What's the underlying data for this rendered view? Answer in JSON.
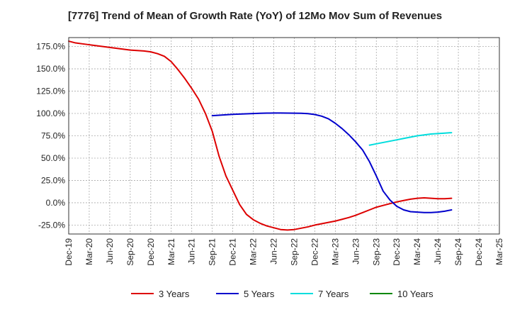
{
  "chart_data": {
    "type": "line",
    "title": "[7776]  Trend of Mean of Growth Rate (YoY) of 12Mo Mov Sum of Revenues",
    "xlabel": "",
    "ylabel": "",
    "x_ticks": [
      "Dec-19",
      "Mar-20",
      "Jun-20",
      "Sep-20",
      "Dec-20",
      "Mar-21",
      "Jun-21",
      "Sep-21",
      "Dec-21",
      "Mar-22",
      "Jun-22",
      "Sep-22",
      "Dec-22",
      "Mar-23",
      "Jun-23",
      "Sep-23",
      "Dec-23",
      "Mar-24",
      "Jun-24",
      "Sep-24",
      "Dec-24",
      "Mar-25"
    ],
    "y_ticks": [
      175,
      150,
      125,
      100,
      75,
      50,
      25,
      0,
      -25
    ],
    "y_tick_labels": [
      "175.0%",
      "150.0%",
      "125.0%",
      "100.0%",
      "75.0%",
      "50.0%",
      "25.0%",
      "0.0%",
      "-25.0%"
    ],
    "ylim": [
      -35,
      185
    ],
    "grid": true,
    "legend_position": "bottom",
    "series": [
      {
        "name": "3 Years",
        "color": "#dd0000",
        "points": [
          [
            0,
            181
          ],
          [
            1,
            179
          ],
          [
            2,
            178
          ],
          [
            3,
            177
          ],
          [
            4,
            176
          ],
          [
            5,
            175
          ],
          [
            6,
            174
          ],
          [
            7,
            173
          ],
          [
            8,
            172
          ],
          [
            9,
            171
          ],
          [
            10,
            170.5
          ],
          [
            11,
            170
          ],
          [
            12,
            169
          ],
          [
            13,
            167
          ],
          [
            14,
            164
          ],
          [
            15,
            158
          ],
          [
            16,
            149
          ],
          [
            17,
            139
          ],
          [
            18,
            128
          ],
          [
            19,
            116
          ],
          [
            20,
            100
          ],
          [
            21,
            80
          ],
          [
            22,
            52
          ],
          [
            23,
            30
          ],
          [
            24,
            14
          ],
          [
            25,
            -2
          ],
          [
            26,
            -13
          ],
          [
            27,
            -19
          ],
          [
            28,
            -23
          ],
          [
            29,
            -26
          ],
          [
            30,
            -28
          ],
          [
            31,
            -30
          ],
          [
            32,
            -30.5
          ],
          [
            33,
            -30
          ],
          [
            34,
            -28.5
          ],
          [
            35,
            -27
          ],
          [
            36,
            -25
          ],
          [
            37,
            -23.5
          ],
          [
            38,
            -22
          ],
          [
            39,
            -20.5
          ],
          [
            40,
            -18.5
          ],
          [
            41,
            -16.5
          ],
          [
            42,
            -14
          ],
          [
            43,
            -11
          ],
          [
            44,
            -8
          ],
          [
            45,
            -5
          ],
          [
            46,
            -3
          ],
          [
            47,
            -1
          ],
          [
            48,
            1
          ],
          [
            49,
            2.5
          ],
          [
            50,
            4
          ],
          [
            51,
            5
          ],
          [
            52,
            5.5
          ],
          [
            53,
            5
          ],
          [
            54,
            4.5
          ],
          [
            55,
            4.5
          ],
          [
            56,
            5
          ]
        ]
      },
      {
        "name": "5 Years",
        "color": "#0000cc",
        "points": [
          [
            21,
            97.5
          ],
          [
            22,
            98
          ],
          [
            23,
            98.5
          ],
          [
            24,
            99
          ],
          [
            25,
            99.3
          ],
          [
            26,
            99.6
          ],
          [
            27,
            99.9
          ],
          [
            28,
            100.2
          ],
          [
            29,
            100.4
          ],
          [
            30,
            100.5
          ],
          [
            31,
            100.5
          ],
          [
            32,
            100.4
          ],
          [
            33,
            100.3
          ],
          [
            34,
            100.2
          ],
          [
            35,
            99.8
          ],
          [
            36,
            98.8
          ],
          [
            37,
            97
          ],
          [
            38,
            94
          ],
          [
            39,
            89
          ],
          [
            40,
            83
          ],
          [
            41,
            76
          ],
          [
            42,
            68
          ],
          [
            43,
            59
          ],
          [
            44,
            46
          ],
          [
            45,
            30
          ],
          [
            46,
            13
          ],
          [
            47,
            3
          ],
          [
            48,
            -4
          ],
          [
            49,
            -8
          ],
          [
            50,
            -10
          ],
          [
            51,
            -10.5
          ],
          [
            52,
            -11
          ],
          [
            53,
            -11
          ],
          [
            54,
            -10.5
          ],
          [
            55,
            -9.5
          ],
          [
            56,
            -8
          ]
        ]
      },
      {
        "name": "7 Years",
        "color": "#00dddd",
        "points": [
          [
            44,
            64.5
          ],
          [
            45,
            66
          ],
          [
            46,
            67.5
          ],
          [
            47,
            69
          ],
          [
            48,
            70.5
          ],
          [
            49,
            72
          ],
          [
            50,
            73.5
          ],
          [
            51,
            75
          ],
          [
            52,
            76
          ],
          [
            53,
            77
          ],
          [
            54,
            77.5
          ],
          [
            55,
            78
          ],
          [
            56,
            78.5
          ]
        ]
      },
      {
        "name": "10 Years",
        "color": "#008800",
        "points": []
      }
    ]
  }
}
